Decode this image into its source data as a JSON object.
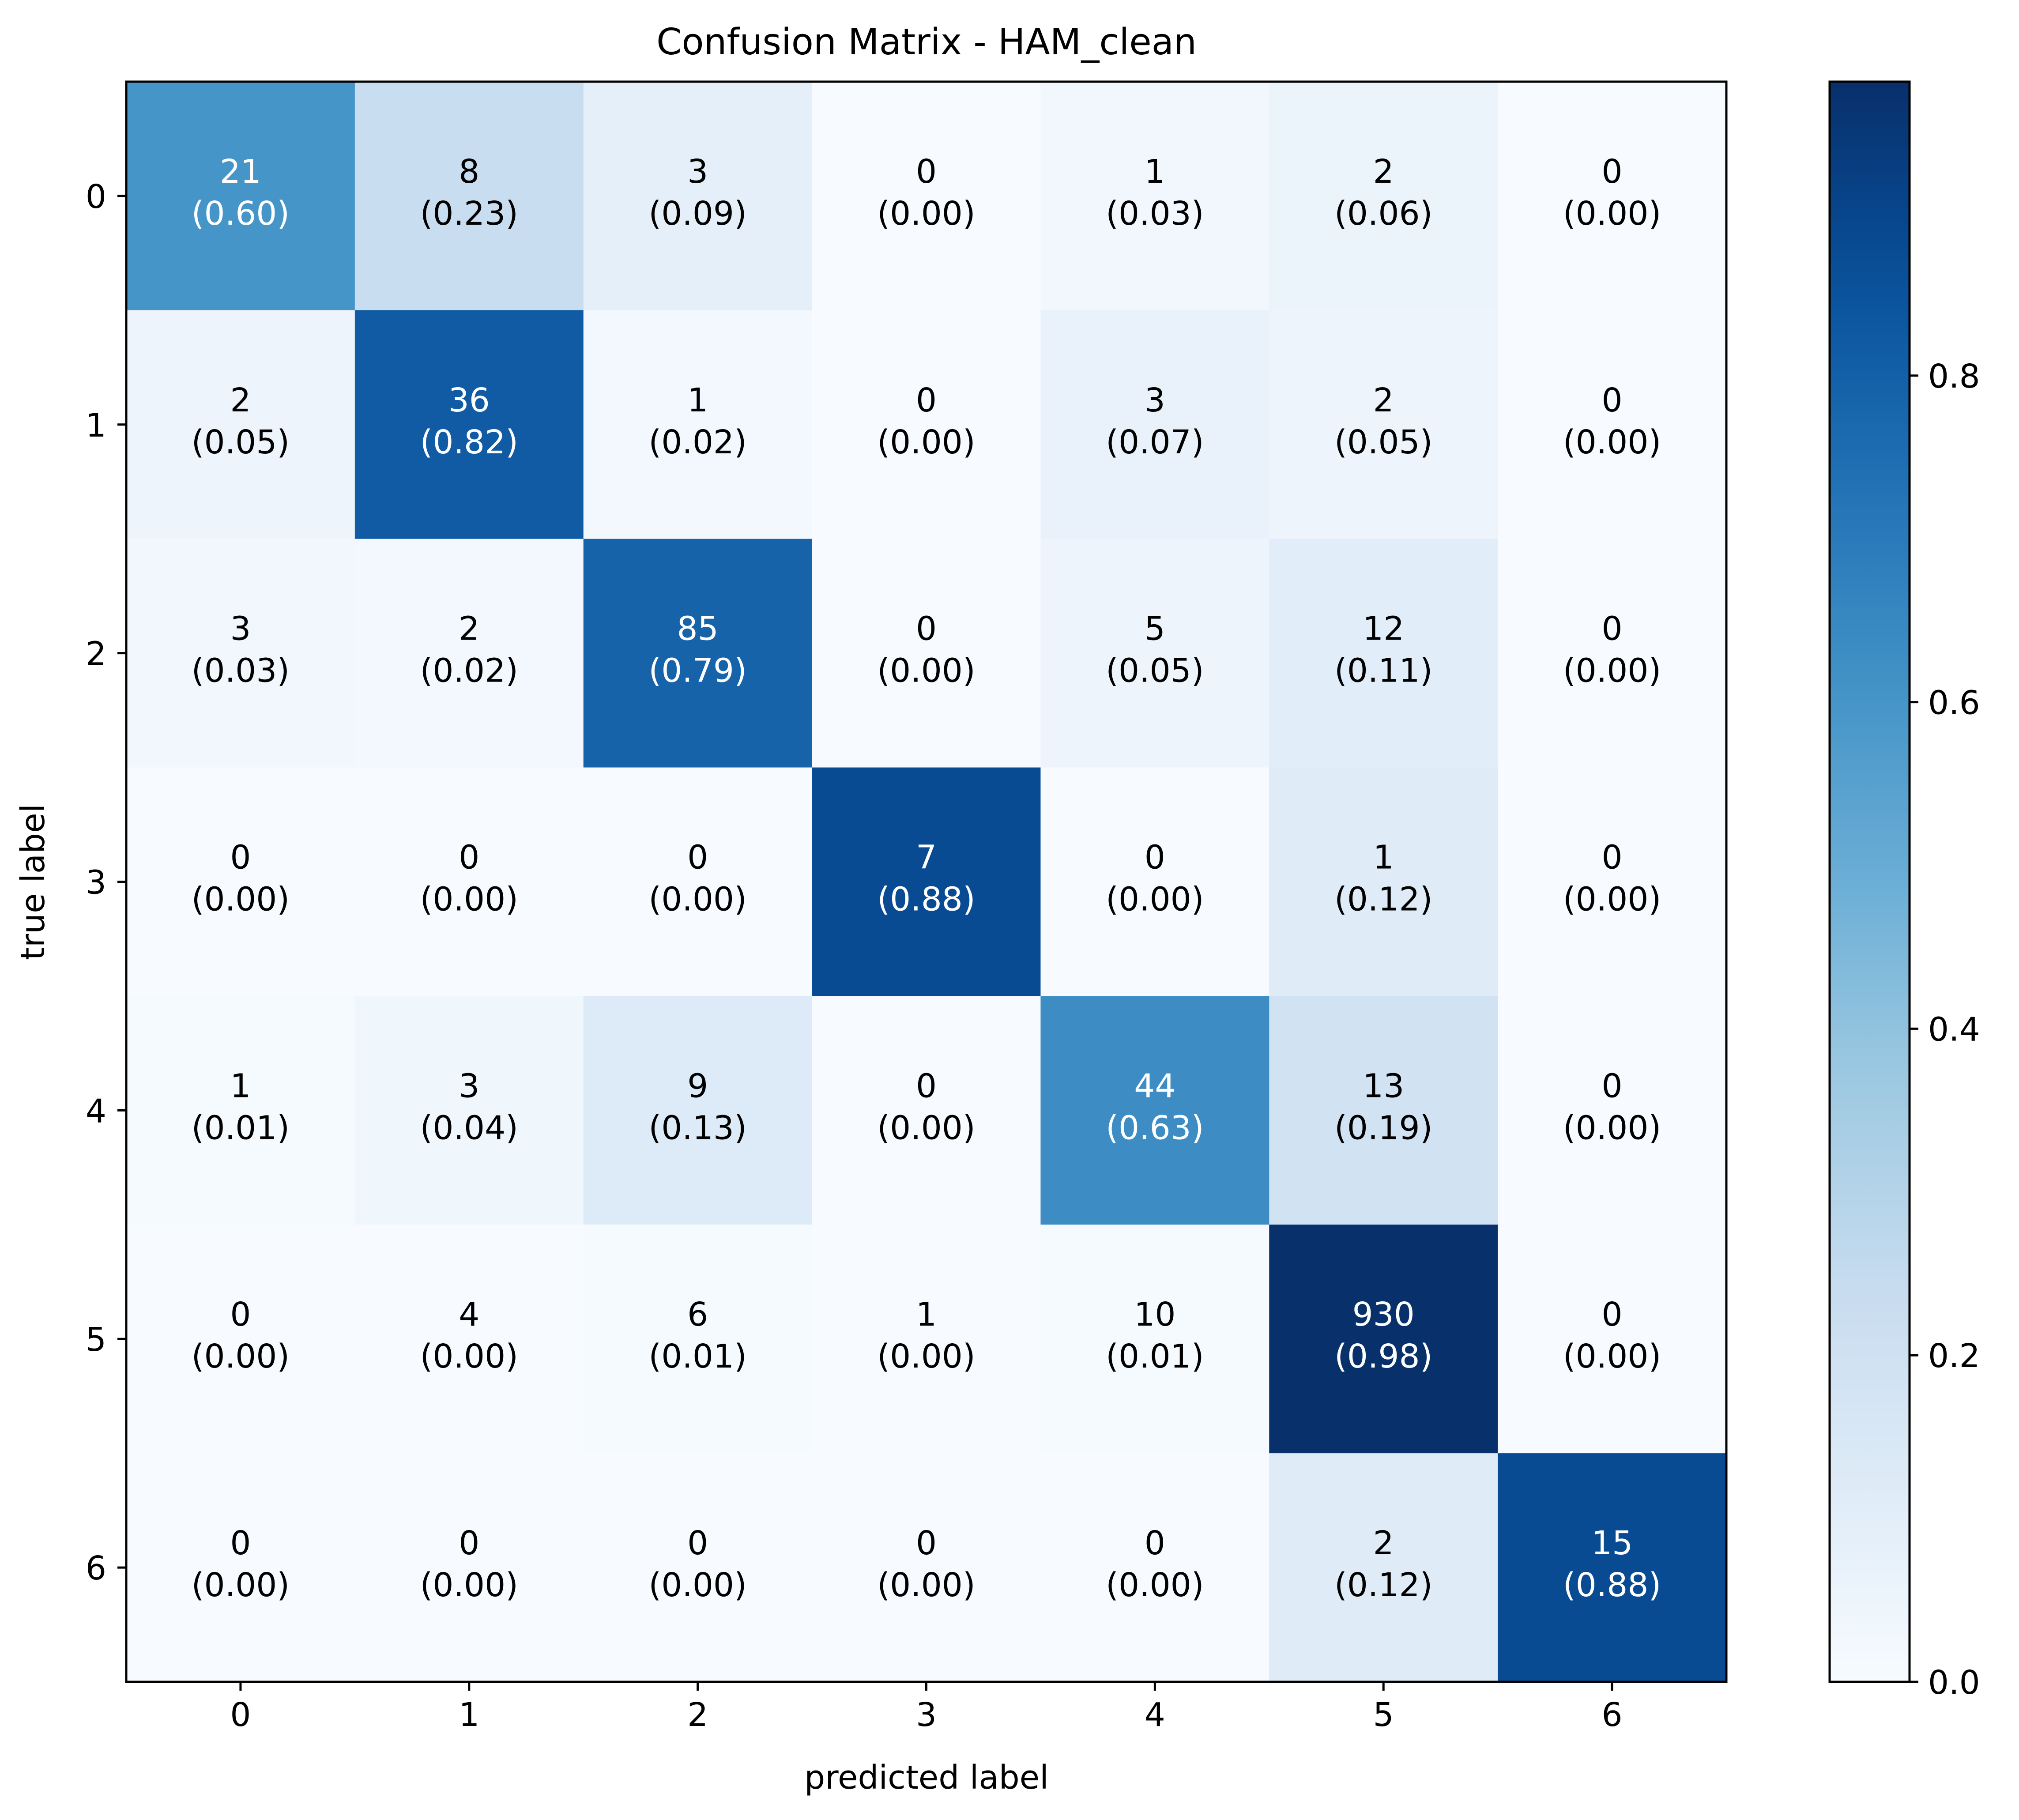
{
  "chart_data": {
    "type": "heatmap",
    "title": "Confusion Matrix - HAM_clean",
    "xlabel": "predicted label",
    "ylabel": "true label",
    "x_categories": [
      "0",
      "1",
      "2",
      "3",
      "4",
      "5",
      "6"
    ],
    "y_categories": [
      "0",
      "1",
      "2",
      "3",
      "4",
      "5",
      "6"
    ],
    "counts": [
      [
        21,
        8,
        3,
        0,
        1,
        2,
        0
      ],
      [
        2,
        36,
        1,
        0,
        3,
        2,
        0
      ],
      [
        3,
        2,
        85,
        0,
        5,
        12,
        0
      ],
      [
        0,
        0,
        0,
        7,
        0,
        1,
        0
      ],
      [
        1,
        3,
        9,
        0,
        44,
        13,
        0
      ],
      [
        0,
        4,
        6,
        1,
        10,
        930,
        0
      ],
      [
        0,
        0,
        0,
        0,
        0,
        2,
        15
      ]
    ],
    "normalized": [
      [
        0.6,
        0.23,
        0.09,
        0.0,
        0.03,
        0.06,
        0.0
      ],
      [
        0.05,
        0.82,
        0.02,
        0.0,
        0.07,
        0.05,
        0.0
      ],
      [
        0.03,
        0.02,
        0.79,
        0.0,
        0.05,
        0.11,
        0.0
      ],
      [
        0.0,
        0.0,
        0.0,
        0.88,
        0.0,
        0.12,
        0.0
      ],
      [
        0.01,
        0.04,
        0.13,
        0.0,
        0.63,
        0.19,
        0.0
      ],
      [
        0.0,
        0.0,
        0.01,
        0.0,
        0.01,
        0.98,
        0.0
      ],
      [
        0.0,
        0.0,
        0.0,
        0.0,
        0.0,
        0.12,
        0.88
      ]
    ],
    "colorbar": {
      "min": 0.0,
      "max": 0.98,
      "ticks": [
        0.0,
        0.2,
        0.4,
        0.6,
        0.8
      ],
      "tick_labels": [
        "0.0",
        "0.2",
        "0.4",
        "0.6",
        "0.8"
      ]
    },
    "colormap": "Blues",
    "grid": false
  }
}
